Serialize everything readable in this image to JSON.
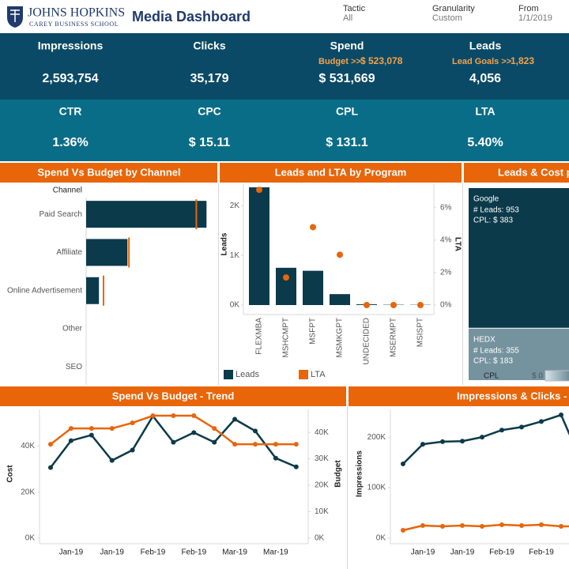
{
  "header": {
    "logo_line1": "JOHNS HOPKINS",
    "logo_line2": "CAREY BUSINESS SCHOOL",
    "title": "Media Dashboard",
    "filters": [
      {
        "label": "Tactic",
        "value": "All"
      },
      {
        "label": "Granularity",
        "value": "Custom"
      },
      {
        "label": "From",
        "value": "1/1/2019"
      }
    ]
  },
  "kpis": [
    {
      "label": "Impressions",
      "value": "2,593,754"
    },
    {
      "label": "Clicks",
      "value": "35,179"
    },
    {
      "label": "Spend",
      "value": "$ 531,669",
      "sub_label": "Budget >>",
      "sub_value": "$ 523,078"
    },
    {
      "label": "Leads",
      "value": "4,056",
      "sub_label": "Lead Goals >>",
      "sub_value": "1,823"
    }
  ],
  "kpis2": [
    {
      "label": "CTR",
      "value": "1.36%"
    },
    {
      "label": "CPC",
      "value": "$ 15.11"
    },
    {
      "label": "CPL",
      "value": "$ 131.1"
    },
    {
      "label": "LTA",
      "value": "5.40%"
    }
  ],
  "chart_data": [
    {
      "type": "hbar",
      "title": "Spend Vs Budget by Channel",
      "y_label": "Channel",
      "categories": [
        "Paid Search",
        "Affiliate",
        "Online Advertisement",
        "Other",
        "SEO"
      ],
      "values": [
        367000,
        126000,
        39000,
        null,
        null
      ],
      "reference_values": [
        336000,
        130500,
        53000,
        null,
        null
      ],
      "color": "#0b3a4b",
      "reference_color": "#e8650a",
      "xlim": [
        0,
        400000
      ]
    },
    {
      "type": "combo",
      "title": "Leads and LTA by Program",
      "y_label": "Leads",
      "y2_label": "LTA",
      "categories": [
        "FLEXMBA",
        "MSHCMPT",
        "MSFPT",
        "MSMKGPT",
        "UNDECIDED",
        "MSERMPT",
        "MSISPT"
      ],
      "series": [
        {
          "name": "Leads",
          "color": "#0b3a4b",
          "values": [
            2370,
            750,
            690,
            220,
            15,
            6,
            5
          ]
        },
        {
          "name": "LTA",
          "color": "#e8650a",
          "values": [
            7.1,
            1.7,
            4.8,
            3.1,
            0,
            0,
            0
          ],
          "axis": "y2"
        }
      ],
      "ylim": [
        0,
        2450
      ],
      "yticks": [
        {
          "value": 0,
          "label": "0K"
        },
        {
          "value": 1000,
          "label": "1K"
        },
        {
          "value": 2000,
          "label": "2K"
        }
      ],
      "y2lim": [
        0,
        7.5
      ],
      "y2ticks": [
        {
          "value": 0,
          "label": "0%"
        },
        {
          "value": 2,
          "label": "2%"
        },
        {
          "value": 4,
          "label": "4%"
        },
        {
          "value": 6,
          "label": "6%"
        }
      ]
    },
    {
      "type": "treemap",
      "title": "Leads & Cost pe",
      "categories": [
        "Google",
        "HEDX"
      ],
      "values": [
        953,
        355
      ],
      "value_labels": [
        "# Leads: 953",
        "# Leads: 355"
      ],
      "cpl": [
        383,
        183
      ],
      "cpl_labels": [
        "CPL: $ 383",
        "CPL: $ 183"
      ],
      "legend_title": "CPL",
      "legend_min_label": "$ 0",
      "colors": [
        "#d6e4ea",
        "#0b3a4b"
      ]
    },
    {
      "type": "line",
      "title": "Spend Vs Budget - Trend",
      "y_label": "Cost",
      "y2_label": "Budget",
      "categories": [
        null,
        "Jan-19",
        null,
        "Jan-19",
        null,
        "Feb-19",
        null,
        "Feb-19",
        null,
        "Mar-19",
        null,
        "Mar-19",
        null
      ],
      "series": [
        {
          "name": "Cost",
          "color": "#0b3a4b",
          "values": [
            30700,
            42400,
            44800,
            33800,
            38300,
            53100,
            41700,
            45900,
            41700,
            51700,
            46600,
            34800,
            31000
          ]
        },
        {
          "name": "Budget",
          "color": "#e8650a",
          "values": [
            35500,
            41500,
            41500,
            41500,
            43600,
            46300,
            46300,
            46300,
            41500,
            35500,
            35500,
            35500,
            35500
          ],
          "axis": "y2"
        }
      ],
      "ylim": [
        0,
        56000
      ],
      "yticks": [
        {
          "value": 0,
          "label": "0K"
        },
        {
          "value": 20000,
          "label": "20K"
        },
        {
          "value": 40000,
          "label": "40K"
        }
      ],
      "y2lim": [
        0,
        48700
      ],
      "y2ticks": [
        {
          "value": 0,
          "label": "0K"
        },
        {
          "value": 10000,
          "label": "10K"
        },
        {
          "value": 20000,
          "label": "20K"
        },
        {
          "value": 30000,
          "label": "30K"
        },
        {
          "value": 40000,
          "label": "40K"
        }
      ]
    },
    {
      "type": "line",
      "title": "Impressions & Clicks - T",
      "y_label": "Impressions",
      "categories": [
        null,
        "Jan-19",
        null,
        "Jan-19",
        null,
        "Feb-19",
        null,
        "Feb-19",
        null,
        null
      ],
      "series": [
        {
          "name": "Impressions",
          "color": "#0b3a4b",
          "values": [
            147000,
            186000,
            191000,
            192000,
            200000,
            214000,
            220000,
            231000,
            244000,
            154000
          ]
        },
        {
          "name": "Clicks",
          "color": "#e8650a",
          "values": [
            1690,
            2700,
            2530,
            2700,
            2530,
            2870,
            2700,
            2870,
            2530,
            2530
          ],
          "axis": "y2"
        }
      ],
      "ylim": [
        0,
        255000
      ],
      "yticks": [
        {
          "value": 0,
          "label": "0K"
        },
        {
          "value": 100000,
          "label": "100K"
        },
        {
          "value": 200000,
          "label": "200K"
        }
      ],
      "y2lim": [
        0,
        27500
      ]
    }
  ]
}
